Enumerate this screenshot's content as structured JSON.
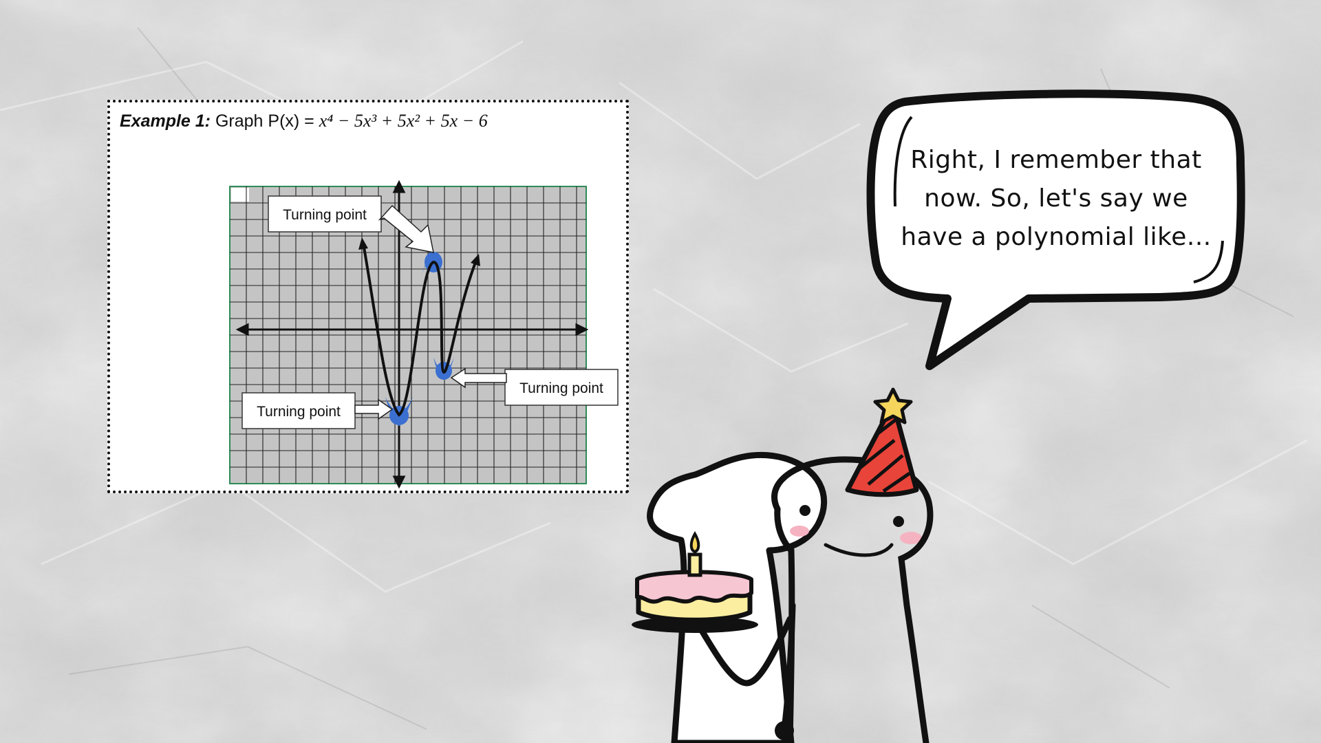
{
  "example": {
    "label": "Example 1:",
    "prefix": "Graph P(x) = ",
    "polynomial": "x⁴ − 5x³ + 5x² + 5x − 6",
    "callouts": [
      {
        "text": "Turning point"
      },
      {
        "text": "Turning point"
      },
      {
        "text": "Turning point"
      }
    ]
  },
  "bubble": {
    "lines": [
      "Right, I remember that",
      "now. So, let's say we",
      "have a polynomial like..."
    ]
  },
  "colors": {
    "grid_fill": "#c4c4c4",
    "grid_border": "#2e8b57",
    "highlight": "#3b6fd0",
    "hat": "#e8443a",
    "star": "#f6d55c",
    "cake_icing": "#f7c6d3",
    "cake_body": "#fbeea0",
    "cheeks": "#f5b3c1"
  }
}
